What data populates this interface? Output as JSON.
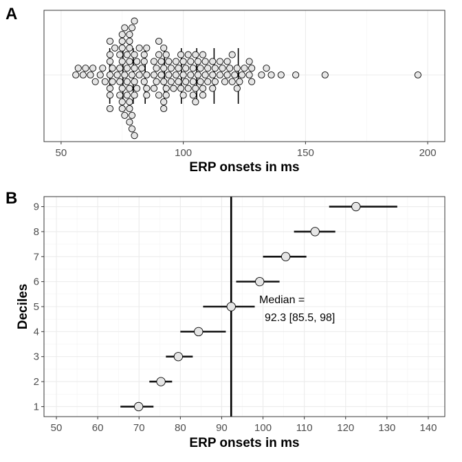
{
  "chart_data": [
    {
      "panel": "A",
      "type": "scatter",
      "subtype": "beeswarm",
      "xlabel": "ERP onsets in ms",
      "ylabel": "",
      "xlim": [
        43,
        207
      ],
      "xticks": [
        50,
        100,
        150,
        200
      ],
      "grid": true,
      "onsets": [
        56,
        57,
        59,
        60,
        62,
        63,
        64,
        66,
        67,
        68,
        70,
        70,
        70,
        70,
        70,
        70,
        70,
        71,
        71,
        72,
        73,
        74,
        74,
        74,
        74,
        75,
        75,
        75,
        75,
        75,
        75,
        75,
        76,
        76,
        76,
        77,
        77,
        77,
        77,
        78,
        78,
        78,
        78,
        78,
        78,
        78,
        78,
        79,
        79,
        79,
        79,
        80,
        80,
        80,
        80,
        80,
        80,
        81,
        81,
        82,
        82,
        83,
        84,
        84,
        84,
        85,
        85,
        85,
        85,
        88,
        88,
        88,
        89,
        89,
        90,
        90,
        90,
        91,
        91,
        92,
        92,
        92,
        92,
        92,
        93,
        93,
        93,
        94,
        94,
        95,
        95,
        96,
        97,
        97,
        98,
        98,
        99,
        99,
        100,
        100,
        100,
        101,
        101,
        102,
        102,
        103,
        103,
        104,
        104,
        104,
        105,
        105,
        105,
        106,
        106,
        107,
        107,
        108,
        108,
        108,
        109,
        109,
        110,
        110,
        112,
        112,
        112,
        113,
        113,
        115,
        115,
        116,
        117,
        118,
        118,
        119,
        120,
        120,
        121,
        122,
        122,
        123,
        124,
        125,
        127,
        127,
        128,
        128,
        132,
        134,
        136,
        140,
        146,
        158,
        196
      ],
      "decile_lines": [
        69.9,
        75.3,
        79.5,
        84.4,
        92.3,
        99.2,
        105.5,
        112.6,
        122.5
      ],
      "median_line": 92.3
    },
    {
      "panel": "B",
      "type": "scatter",
      "subtype": "pointrange",
      "xlabel": "ERP onsets in ms",
      "ylabel": "Deciles",
      "xlim": [
        47,
        144
      ],
      "ylim": [
        0.6,
        9.4
      ],
      "xticks": [
        50,
        60,
        70,
        80,
        90,
        100,
        110,
        120,
        130,
        140
      ],
      "yticks": [
        1,
        2,
        3,
        4,
        5,
        6,
        7,
        8,
        9
      ],
      "grid": true,
      "deciles": [
        {
          "decile": 1,
          "estimate": 69.9,
          "lower": 65.5,
          "upper": 73.5
        },
        {
          "decile": 2,
          "estimate": 75.3,
          "lower": 72.5,
          "upper": 78.0
        },
        {
          "decile": 3,
          "estimate": 79.5,
          "lower": 76.5,
          "upper": 83.0
        },
        {
          "decile": 4,
          "estimate": 84.4,
          "lower": 80.0,
          "upper": 91.0
        },
        {
          "decile": 5,
          "estimate": 92.3,
          "lower": 85.5,
          "upper": 98.0
        },
        {
          "decile": 6,
          "estimate": 99.2,
          "lower": 93.5,
          "upper": 104.0
        },
        {
          "decile": 7,
          "estimate": 105.5,
          "lower": 100.0,
          "upper": 110.5
        },
        {
          "decile": 8,
          "estimate": 112.6,
          "lower": 107.5,
          "upper": 117.5
        },
        {
          "decile": 9,
          "estimate": 122.5,
          "lower": 116.0,
          "upper": 132.5
        }
      ],
      "median_line": 92.3,
      "annotation_line1": "Median =",
      "annotation_line2": "92.3 [85.5, 98]"
    }
  ],
  "labels": {
    "panel_a": "A",
    "panel_b": "B"
  },
  "colors": {
    "point_fill": "#e6e6e6",
    "point_stroke": "#000000",
    "grid": "#ebebeb",
    "border": "#333333"
  }
}
